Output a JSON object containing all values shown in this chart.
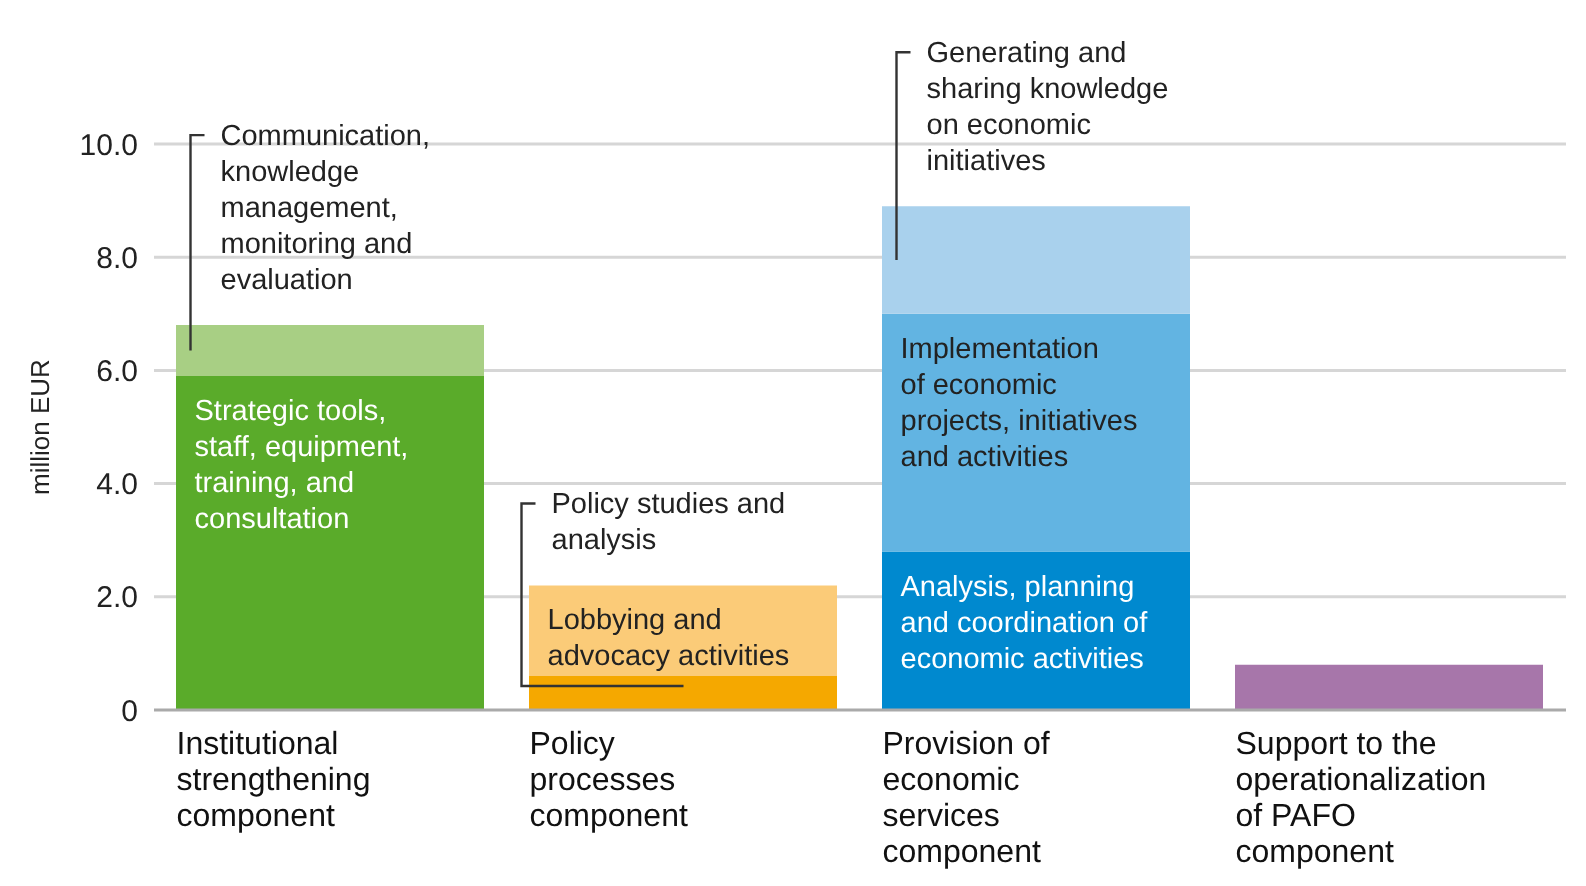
{
  "chart_data": {
    "type": "bar",
    "stacked": true,
    "ylabel": "million EUR",
    "categories": [
      "Institutional strengthening component",
      "Policy processes component",
      "Provision of economic services component",
      "Support to the operationalization of PAFO component"
    ],
    "series": [
      {
        "colors": [
          "#5aab2a",
          "#f5a800",
          "#0089cf",
          "#a776aa"
        ],
        "values": [
          5.9,
          0.6,
          2.8,
          0.8
        ]
      },
      {
        "colors": [
          "#a8cf84",
          "#fbcb78",
          "#62b4e2",
          null
        ],
        "values": [
          0.9,
          1.6,
          4.2,
          null
        ]
      },
      {
        "colors": [
          null,
          null,
          "#a9d1ed",
          null
        ],
        "values": [
          null,
          null,
          1.9,
          null
        ]
      }
    ],
    "ylim": [
      0,
      10
    ],
    "yticks": [
      0,
      {
        "value": 2,
        "label": "2.0"
      },
      {
        "value": 4,
        "label": "4.0"
      },
      {
        "value": 6,
        "label": "6.0"
      },
      {
        "value": 8,
        "label": "8.0"
      },
      {
        "value": 10,
        "label": "10.0"
      }
    ],
    "grid": "y",
    "annotations": [
      {
        "text": "Communication,\nknowledge\nmanagement,\nmonitoring and\nevaluation",
        "x": "Institutional strengthening component",
        "y": 6.8
      },
      {
        "text": "Strategic tools,\nstaff, equipment,\ntraining, and\nconsultation",
        "x": "Institutional strengthening component",
        "y": 5.9
      },
      {
        "text": "Policy studies and\nanalysis",
        "x": "Policy processes component",
        "y": 2.2
      },
      {
        "text": "Lobbying and\nadvocacy activities",
        "x": "Policy processes component",
        "y": 2.2
      },
      {
        "text": "Generating and\nsharing knowledge\non economic\ninitiatives",
        "x": "Provision of economic services component",
        "y": 8.9
      },
      {
        "text": "Implementation\nof economic\nprojects, initiatives\nand activities",
        "x": "Provision of economic services component",
        "y": 7.0
      },
      {
        "text": "Analysis, planning\nand coordination of\neconomic activities",
        "x": "Provision of economic services component",
        "y": 2.8
      }
    ]
  }
}
